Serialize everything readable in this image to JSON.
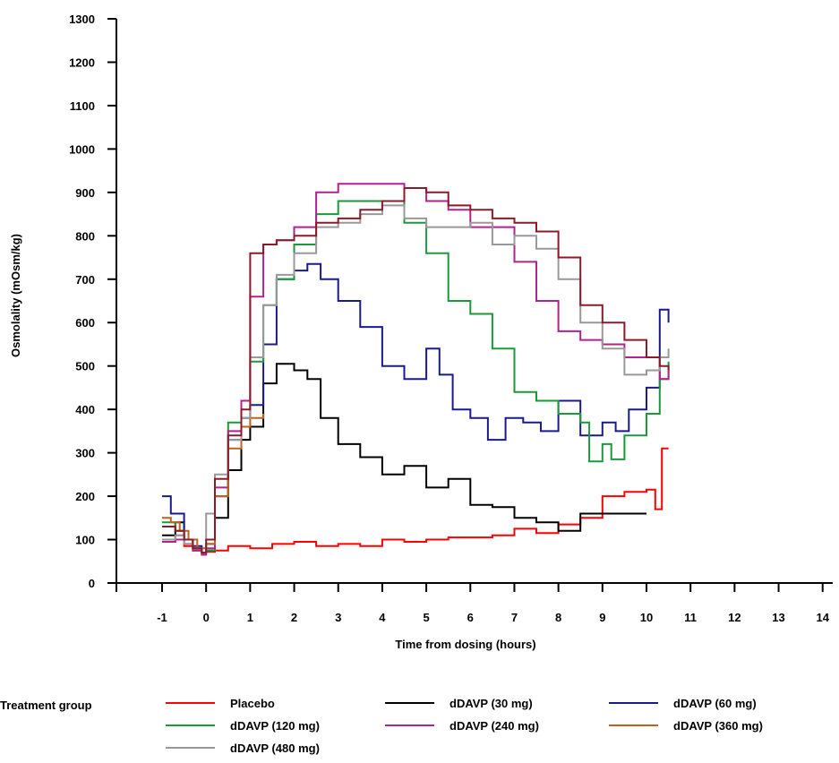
{
  "chart_data": {
    "type": "line",
    "title": "",
    "xlabel": "Time from dosing (hours)",
    "ylabel": "Osmolality (mOsm/kg)",
    "xlim": [
      -1.5,
      14.2
    ],
    "ylim": [
      0,
      1300
    ],
    "x_ticks": [
      -1,
      0,
      1,
      2,
      3,
      4,
      5,
      6,
      7,
      8,
      9,
      10,
      11,
      12,
      13,
      14
    ],
    "y_ticks": [
      0,
      100,
      200,
      300,
      400,
      500,
      600,
      700,
      800,
      900,
      1000,
      1100,
      1200,
      1300
    ],
    "grid": false,
    "legend": {
      "title": "Treatment group",
      "placement": "bottom"
    },
    "series": [
      {
        "name": "Placebo",
        "color": "#ff0000",
        "x": [
          -1,
          -0.7,
          -0.5,
          -0.3,
          -0.1,
          0,
          0.2,
          0.5,
          1,
          1.5,
          2,
          2.5,
          3,
          3.5,
          4,
          4.5,
          5,
          5.5,
          6,
          6.5,
          7,
          7.5,
          8,
          8.5,
          9,
          9.5,
          10,
          10.2,
          10.35,
          10.5
        ],
        "y": [
          95,
          110,
          85,
          75,
          70,
          72,
          75,
          85,
          80,
          90,
          95,
          85,
          90,
          85,
          100,
          95,
          100,
          105,
          105,
          110,
          125,
          115,
          135,
          150,
          200,
          210,
          215,
          170,
          310,
          310
        ]
      },
      {
        "name": "dDAVP (30 mg)",
        "color": "#000000",
        "x": [
          -1,
          -0.7,
          -0.5,
          -0.3,
          -0.1,
          0,
          0.2,
          0.5,
          0.8,
          1,
          1.3,
          1.6,
          2,
          2.3,
          2.6,
          3,
          3.5,
          4,
          4.5,
          5,
          5.5,
          6,
          6.5,
          7,
          7.5,
          8,
          8.5,
          9,
          9.5,
          10
        ],
        "y": [
          110,
          140,
          100,
          80,
          70,
          75,
          150,
          260,
          330,
          360,
          460,
          505,
          490,
          470,
          380,
          320,
          290,
          250,
          270,
          220,
          240,
          180,
          175,
          150,
          140,
          120,
          160,
          160,
          160,
          160
        ]
      },
      {
        "name": "dDAVP (60 mg)",
        "color": "#1a1a8c",
        "x": [
          -1,
          -0.8,
          -0.5,
          -0.3,
          -0.1,
          0,
          0.2,
          0.5,
          0.8,
          1,
          1.3,
          1.6,
          2,
          2.3,
          2.6,
          3,
          3.5,
          4,
          4.5,
          5,
          5.3,
          5.6,
          6,
          6.4,
          6.8,
          7.2,
          7.6,
          8,
          8.5,
          9,
          9.3,
          9.6,
          10,
          10.3,
          10.5
        ],
        "y": [
          200,
          160,
          100,
          85,
          70,
          90,
          200,
          330,
          380,
          410,
          550,
          700,
          720,
          735,
          700,
          650,
          590,
          500,
          470,
          540,
          480,
          400,
          380,
          330,
          380,
          370,
          350,
          420,
          340,
          370,
          350,
          400,
          450,
          630,
          600
        ]
      },
      {
        "name": "dDAVP (120 mg)",
        "color": "#1a9a3a",
        "x": [
          -1,
          -0.7,
          -0.5,
          -0.3,
          -0.1,
          0,
          0.2,
          0.5,
          0.8,
          1,
          1.3,
          1.6,
          2,
          2.5,
          3,
          3.5,
          4,
          4.5,
          5,
          5.5,
          6,
          6.5,
          7,
          7.5,
          8,
          8.5,
          8.7,
          9,
          9.2,
          9.5,
          10,
          10.3,
          10.5
        ],
        "y": [
          140,
          120,
          100,
          80,
          70,
          75,
          200,
          370,
          420,
          510,
          640,
          700,
          780,
          850,
          880,
          880,
          880,
          830,
          760,
          650,
          620,
          540,
          440,
          420,
          390,
          370,
          280,
          320,
          285,
          340,
          390,
          470,
          510
        ]
      },
      {
        "name": "dDAVP (240 mg)",
        "color": "#b0228c",
        "x": [
          -1,
          -0.7,
          -0.5,
          -0.3,
          -0.1,
          0,
          0.2,
          0.5,
          0.8,
          1,
          1.3,
          1.6,
          2,
          2.5,
          3,
          3.5,
          4,
          4.5,
          5,
          5.5,
          6,
          6.5,
          7,
          7.5,
          8,
          8.5,
          9,
          9.5,
          10,
          10.3,
          10.5
        ],
        "y": [
          95,
          100,
          90,
          75,
          65,
          80,
          220,
          350,
          420,
          660,
          780,
          790,
          820,
          900,
          920,
          920,
          920,
          910,
          880,
          860,
          820,
          820,
          740,
          650,
          580,
          560,
          550,
          520,
          520,
          470,
          490
        ]
      },
      {
        "name": "dDAVP (360 mg)",
        "color": "#c0601a",
        "x": [
          -1,
          -0.8,
          -0.6,
          -0.4,
          -0.2,
          0,
          0.2,
          0.5,
          0.8,
          1,
          1.3
        ],
        "y": [
          150,
          140,
          120,
          100,
          80,
          90,
          200,
          310,
          360,
          380,
          390
        ]
      },
      {
        "name": "dDAVP (480 mg)",
        "color": "#999999",
        "x": [
          -1,
          -0.7,
          -0.5,
          -0.3,
          -0.1,
          0,
          0.2,
          0.5,
          0.8,
          1,
          1.3,
          1.6,
          2,
          2.5,
          3,
          3.5,
          4,
          4.5,
          5,
          5.5,
          6,
          6.5,
          7,
          7.5,
          8,
          8.5,
          9,
          9.5,
          10,
          10.3,
          10.5
        ],
        "y": [
          100,
          110,
          90,
          80,
          70,
          160,
          250,
          330,
          380,
          520,
          640,
          710,
          760,
          820,
          830,
          850,
          870,
          840,
          820,
          820,
          830,
          780,
          800,
          770,
          700,
          600,
          540,
          480,
          490,
          520,
          540
        ]
      },
      {
        "name": "dDAVP (480 mg) dark",
        "color": "#8b1a2a",
        "legend": false,
        "x": [
          -1,
          -0.7,
          -0.5,
          -0.3,
          -0.1,
          0,
          0.2,
          0.5,
          0.8,
          1,
          1.3,
          1.6,
          2,
          2.5,
          3,
          3.5,
          4,
          4.5,
          5,
          5.5,
          6,
          6.5,
          7,
          7.5,
          8,
          8.5,
          9,
          9.5,
          10,
          10.3,
          10.5
        ],
        "y": [
          130,
          120,
          100,
          80,
          70,
          100,
          240,
          340,
          400,
          760,
          780,
          790,
          800,
          830,
          840,
          860,
          880,
          910,
          900,
          870,
          860,
          840,
          830,
          810,
          750,
          640,
          600,
          560,
          520,
          500,
          490
        ]
      }
    ]
  }
}
